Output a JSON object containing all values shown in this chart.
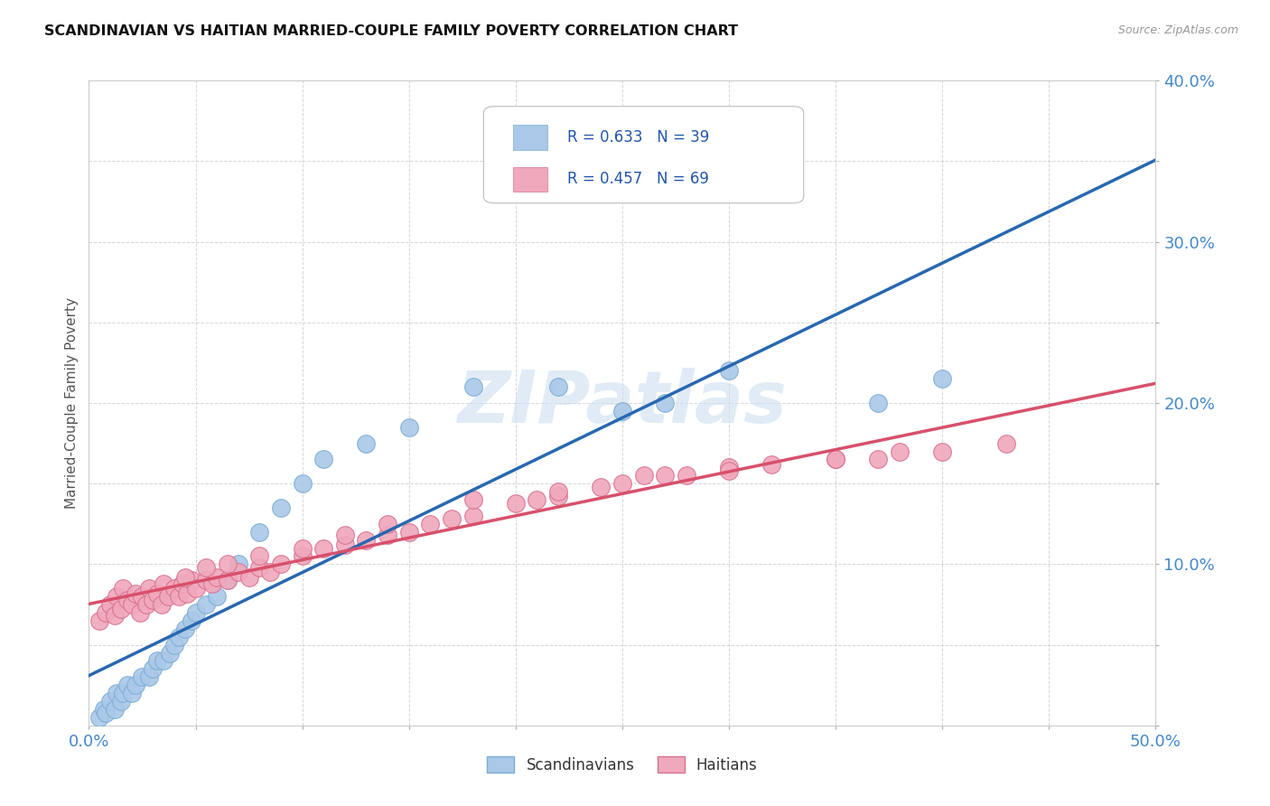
{
  "title": "SCANDINAVIAN VS HAITIAN MARRIED-COUPLE FAMILY POVERTY CORRELATION CHART",
  "source": "Source: ZipAtlas.com",
  "ylabel": "Married-Couple Family Poverty",
  "xlim": [
    0.0,
    0.5
  ],
  "ylim": [
    0.0,
    0.4
  ],
  "xticks": [
    0.0,
    0.05,
    0.1,
    0.15,
    0.2,
    0.25,
    0.3,
    0.35,
    0.4,
    0.45,
    0.5
  ],
  "yticks": [
    0.0,
    0.05,
    0.1,
    0.15,
    0.2,
    0.25,
    0.3,
    0.35,
    0.4
  ],
  "blue_scatter_color": "#aac8e8",
  "blue_scatter_edge": "#7aadd4",
  "pink_scatter_color": "#f0a8bc",
  "pink_scatter_edge": "#d87090",
  "blue_line_color": "#2868b0",
  "pink_line_color": "#d8506c",
  "dashed_line_color": "#90b8d8",
  "tick_color": "#4488cc",
  "grid_color": "#cccccc",
  "watermark": "ZIPatlas",
  "watermark_color": "#ccdff0",
  "legend_r1": "R = 0.633   N = 39",
  "legend_r2": "R = 0.457   N = 69",
  "legend_color": "#2255aa",
  "scandinavian_x": [
    0.005,
    0.007,
    0.008,
    0.01,
    0.012,
    0.013,
    0.015,
    0.016,
    0.018,
    0.02,
    0.022,
    0.025,
    0.028,
    0.03,
    0.032,
    0.035,
    0.038,
    0.04,
    0.042,
    0.045,
    0.048,
    0.05,
    0.055,
    0.06,
    0.065,
    0.07,
    0.08,
    0.09,
    0.1,
    0.11,
    0.13,
    0.15,
    0.18,
    0.22,
    0.25,
    0.27,
    0.3,
    0.37,
    0.4
  ],
  "scandinavian_y": [
    0.005,
    0.01,
    0.008,
    0.015,
    0.01,
    0.02,
    0.015,
    0.02,
    0.025,
    0.02,
    0.025,
    0.03,
    0.03,
    0.035,
    0.04,
    0.04,
    0.045,
    0.05,
    0.055,
    0.06,
    0.065,
    0.07,
    0.075,
    0.08,
    0.09,
    0.1,
    0.12,
    0.135,
    0.15,
    0.165,
    0.175,
    0.185,
    0.21,
    0.21,
    0.195,
    0.2,
    0.22,
    0.2,
    0.215
  ],
  "haitian_x": [
    0.005,
    0.008,
    0.01,
    0.012,
    0.013,
    0.015,
    0.016,
    0.018,
    0.02,
    0.022,
    0.024,
    0.025,
    0.027,
    0.028,
    0.03,
    0.032,
    0.034,
    0.035,
    0.037,
    0.04,
    0.042,
    0.044,
    0.046,
    0.048,
    0.05,
    0.055,
    0.058,
    0.06,
    0.065,
    0.07,
    0.075,
    0.08,
    0.085,
    0.09,
    0.1,
    0.11,
    0.12,
    0.13,
    0.14,
    0.15,
    0.16,
    0.17,
    0.18,
    0.2,
    0.21,
    0.22,
    0.24,
    0.25,
    0.27,
    0.28,
    0.3,
    0.32,
    0.35,
    0.37,
    0.38,
    0.4,
    0.43,
    0.045,
    0.055,
    0.065,
    0.08,
    0.1,
    0.12,
    0.14,
    0.18,
    0.22,
    0.26,
    0.3,
    0.35
  ],
  "haitian_y": [
    0.065,
    0.07,
    0.075,
    0.068,
    0.08,
    0.072,
    0.085,
    0.078,
    0.075,
    0.082,
    0.07,
    0.08,
    0.075,
    0.085,
    0.078,
    0.082,
    0.075,
    0.088,
    0.08,
    0.085,
    0.08,
    0.088,
    0.082,
    0.09,
    0.085,
    0.09,
    0.088,
    0.092,
    0.09,
    0.095,
    0.092,
    0.098,
    0.095,
    0.1,
    0.105,
    0.11,
    0.112,
    0.115,
    0.118,
    0.12,
    0.125,
    0.128,
    0.13,
    0.138,
    0.14,
    0.142,
    0.148,
    0.15,
    0.155,
    0.155,
    0.16,
    0.162,
    0.165,
    0.165,
    0.17,
    0.17,
    0.175,
    0.092,
    0.098,
    0.1,
    0.105,
    0.11,
    0.118,
    0.125,
    0.14,
    0.145,
    0.155,
    0.158,
    0.165
  ]
}
